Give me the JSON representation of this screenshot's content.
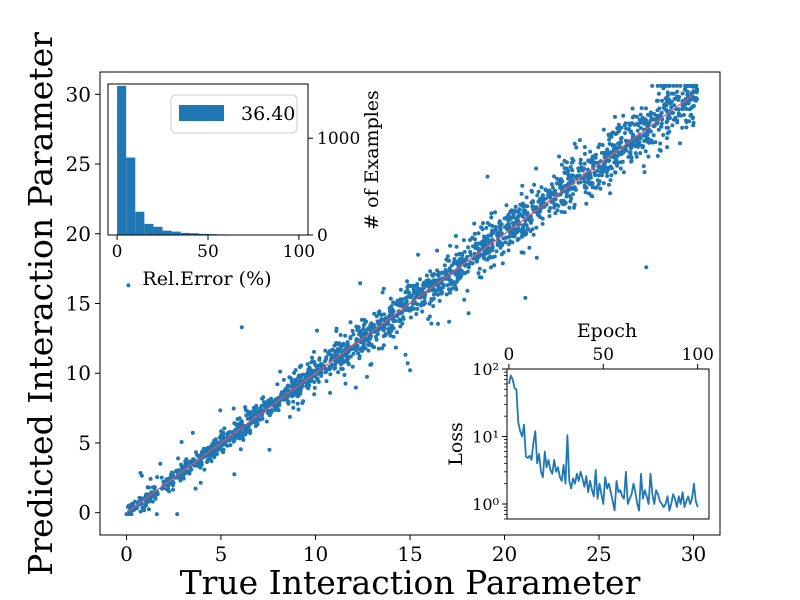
{
  "chart_data": [
    {
      "id": "main",
      "type": "scatter",
      "title": "",
      "xlabel": "True Interaction Parameter",
      "ylabel": "Predicted Interaction Parameter",
      "xlim": [
        -1.4,
        31.4
      ],
      "ylim": [
        -1.6,
        31.6
      ],
      "xticks": [
        0,
        5,
        10,
        15,
        20,
        25,
        30
      ],
      "yticks": [
        0,
        5,
        10,
        15,
        20,
        25,
        30
      ],
      "grid": false,
      "point_color": "#1f77b4",
      "ideal_line": {
        "from": [
          0,
          0
        ],
        "to": [
          30,
          30
        ],
        "color": "#d9536f"
      },
      "outliers": [
        [
          0.1,
          16.3
        ],
        [
          21.1,
          15.4
        ],
        [
          27.5,
          17.6
        ],
        [
          18.1,
          14.3
        ],
        [
          12.9,
          10.6
        ],
        [
          9.1,
          7.4
        ],
        [
          6.1,
          13.3
        ],
        [
          19.1,
          24.1
        ]
      ]
    },
    {
      "id": "error-histogram",
      "type": "bar",
      "title": "",
      "xlabel": "Rel.Error (%)",
      "ylabel": "# of Examples",
      "xlim": [
        -5,
        105
      ],
      "ylim": [
        0,
        1560
      ],
      "xticks": [
        0,
        50,
        100
      ],
      "yticks": [
        0,
        1000
      ],
      "legend": {
        "placement": "top-right",
        "label": "36.40",
        "color": "#1f77b4"
      },
      "bin_width": 5,
      "bins": [
        0,
        5,
        10,
        15,
        20,
        25,
        30,
        35,
        40,
        45,
        50,
        55,
        60,
        65,
        70,
        75,
        80,
        85,
        90,
        95
      ],
      "values": [
        1540,
        800,
        240,
        115,
        85,
        45,
        35,
        22,
        18,
        12,
        9,
        6,
        5,
        4,
        3,
        3,
        2,
        2,
        2,
        2
      ]
    },
    {
      "id": "loss-curve",
      "type": "line",
      "title": "",
      "xlabel": "Epoch",
      "ylabel": "Loss",
      "xlim": [
        -1,
        106
      ],
      "ylim_log": [
        0.6,
        100
      ],
      "log_scale_y": true,
      "xticks": [
        0,
        50,
        100
      ],
      "yticks": [
        1,
        10,
        100
      ],
      "ytick_labels": [
        "10⁰",
        "10¹",
        "10²"
      ],
      "color": "#1f77b4",
      "x": [
        0,
        1,
        2,
        3,
        4,
        5,
        6,
        7,
        8,
        9,
        10,
        11,
        12,
        13,
        14,
        15,
        16,
        17,
        18,
        19,
        20,
        21,
        22,
        23,
        24,
        25,
        26,
        27,
        28,
        29,
        30,
        31,
        32,
        33,
        34,
        35,
        36,
        37,
        38,
        39,
        40,
        41,
        42,
        43,
        44,
        45,
        46,
        47,
        48,
        49,
        50,
        51,
        52,
        53,
        54,
        55,
        56,
        57,
        58,
        59,
        60,
        61,
        62,
        63,
        64,
        65,
        66,
        67,
        68,
        69,
        70,
        71,
        72,
        73,
        74,
        75,
        76,
        77,
        78,
        79,
        80,
        81,
        82,
        83,
        84,
        85,
        86,
        87,
        88,
        89,
        90,
        91,
        92,
        93,
        94,
        95,
        96,
        97,
        98,
        99,
        100
      ],
      "values": [
        60,
        80,
        70,
        52,
        50,
        16,
        12,
        10,
        15,
        5,
        4.8,
        5.2,
        4.5,
        8.0,
        12,
        4.0,
        5.5,
        3.0,
        2.5,
        6.0,
        3.5,
        4.5,
        3.2,
        2.8,
        4.5,
        3.0,
        3.5,
        2.5,
        2.2,
        3.8,
        2.0,
        10.5,
        2.2,
        1.7,
        2.4,
        2.0,
        2.8,
        2.2,
        3.0,
        2.4,
        1.8,
        2.6,
        1.5,
        2.2,
        1.6,
        1.3,
        3.2,
        1.2,
        2.0,
        1.4,
        1.0,
        2.5,
        1.7,
        2.0,
        1.5,
        1.1,
        0.8,
        2.2,
        1.5,
        1.6,
        1.3,
        1.2,
        3.0,
        1.0,
        1.2,
        1.4,
        2.0,
        1.5,
        1.0,
        0.8,
        2.8,
        1.2,
        1.6,
        1.3,
        1.0,
        2.8,
        1.4,
        1.0,
        1.6,
        1.4,
        1.1,
        1.0,
        0.9,
        1.0,
        1.3,
        0.8,
        1.0,
        1.4,
        1.2,
        0.9,
        1.3,
        1.0,
        1.5,
        0.9,
        1.1,
        1.3,
        1.0,
        1.2,
        2.0,
        1.1,
        0.9
      ]
    }
  ]
}
